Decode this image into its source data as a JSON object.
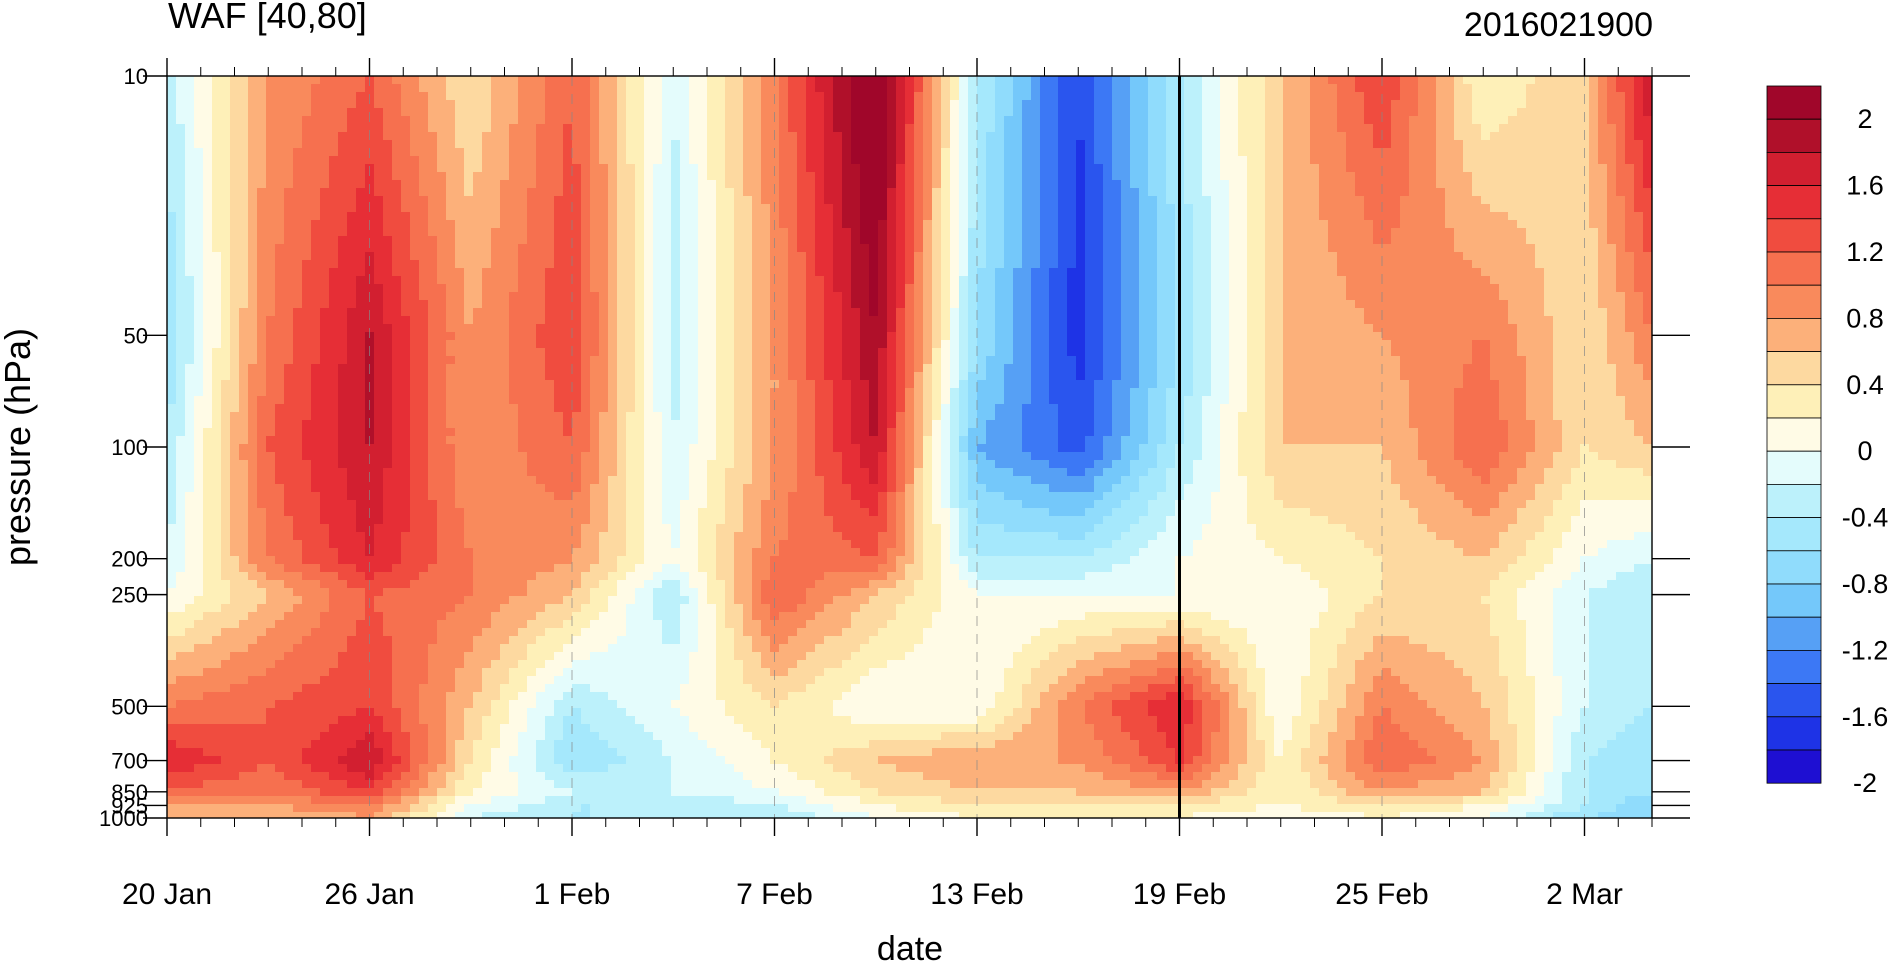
{
  "chart_data": {
    "type": "heatmap",
    "title": "WAF [40,80]",
    "subtitle": "2016021900",
    "xlabel": "date",
    "ylabel": "pressure (hPa)",
    "x_tick_labels": [
      "20 Jan",
      "26 Jan",
      "1 Feb",
      "7 Feb",
      "13 Feb",
      "19 Feb",
      "25 Feb",
      "2 Mar"
    ],
    "x_range": [
      "20 Jan",
      "4 Mar"
    ],
    "y_scale": "log",
    "y_reversed": true,
    "y_tick_labels": [
      "10",
      "50",
      "100",
      "200",
      "250",
      "500",
      "700",
      "850",
      "925",
      "1000"
    ],
    "y_values": [
      10,
      50,
      100,
      200,
      250,
      500,
      700,
      850,
      925,
      1000
    ],
    "ylim": [
      1000,
      10
    ],
    "vertical_marker_date": "19 Feb",
    "colorbar": {
      "labels": [
        "2",
        "1.6",
        "1.2",
        "0.8",
        "0.4",
        "0",
        "-0.4",
        "-0.8",
        "-1.2",
        "-1.6",
        "-2"
      ],
      "levels": [
        -2.2,
        -2.0,
        -1.8,
        -1.6,
        -1.4,
        -1.2,
        -1.0,
        -0.8,
        -0.6,
        -0.4,
        -0.2,
        0,
        0.2,
        0.4,
        0.6,
        0.8,
        1.0,
        1.2,
        1.4,
        1.6,
        1.8,
        2.0,
        2.2
      ],
      "colors": [
        "#1e0fd2",
        "#1e33e6",
        "#2a55ee",
        "#3c78f5",
        "#56a0f5",
        "#74c8fa",
        "#90dcfc",
        "#a5e8fc",
        "#bcf1fb",
        "#e4fcfc",
        "#fffbe6",
        "#fef0b8",
        "#fdd9a0",
        "#fcb07a",
        "#f98a5c",
        "#f6704f",
        "#f04c3f",
        "#e62e36",
        "#d21f30",
        "#b0102a",
        "#a0062a"
      ]
    },
    "grid": {
      "pressures": [
        10,
        50,
        100,
        200,
        250,
        500,
        700,
        850,
        925,
        1000
      ],
      "dates": [
        "20 Jan",
        "23 Jan",
        "26 Jan",
        "29 Jan",
        "1 Feb",
        "4 Feb",
        "7 Feb",
        "10 Feb",
        "13 Feb",
        "16 Feb",
        "19 Feb",
        "22 Feb",
        "25 Feb",
        "28 Feb",
        "2 Mar",
        "4 Mar"
      ],
      "values": [
        [
          -0.5,
          0.6,
          1.0,
          0.2,
          1.0,
          -0.4,
          0.8,
          2.2,
          -0.6,
          -1.8,
          -0.6,
          0.4,
          1.2,
          0.0,
          0.4,
          1.6
        ],
        [
          -0.8,
          0.8,
          1.6,
          0.6,
          1.2,
          -0.5,
          0.6,
          1.8,
          -0.8,
          -1.9,
          -0.8,
          0.4,
          0.6,
          0.8,
          0.2,
          0.8
        ],
        [
          -0.6,
          1.0,
          1.6,
          0.6,
          1.0,
          -0.4,
          0.6,
          1.6,
          -1.2,
          -1.7,
          -0.6,
          0.4,
          0.4,
          1.0,
          0.2,
          0.4
        ],
        [
          -0.4,
          0.8,
          1.4,
          0.8,
          0.6,
          -0.2,
          0.8,
          1.0,
          -0.6,
          -0.6,
          -0.2,
          0.0,
          0.2,
          0.4,
          -0.2,
          -0.4
        ],
        [
          -0.2,
          0.4,
          1.0,
          0.8,
          0.4,
          -0.6,
          1.0,
          0.4,
          -0.2,
          -0.2,
          -0.2,
          -0.2,
          0.2,
          0.2,
          -0.4,
          -0.6
        ],
        [
          0.8,
          1.0,
          1.2,
          0.4,
          -0.6,
          -0.2,
          0.2,
          -0.2,
          -0.2,
          0.8,
          1.4,
          -0.2,
          0.8,
          0.4,
          -0.4,
          -0.6
        ],
        [
          1.4,
          1.0,
          1.6,
          0.2,
          -0.8,
          -0.4,
          0.0,
          0.4,
          0.6,
          0.6,
          1.2,
          0.0,
          1.0,
          0.6,
          -0.6,
          -0.8
        ],
        [
          1.0,
          0.8,
          1.2,
          0.0,
          -0.4,
          -0.4,
          -0.2,
          0.2,
          0.4,
          0.4,
          0.6,
          0.0,
          0.6,
          0.4,
          -0.6,
          -0.8
        ],
        [
          0.6,
          0.6,
          0.8,
          -0.2,
          -0.6,
          -0.6,
          -0.4,
          0.0,
          0.2,
          0.2,
          0.2,
          0.0,
          0.2,
          0.0,
          -0.6,
          -1.0
        ],
        [
          0.4,
          0.4,
          0.6,
          -0.4,
          -0.6,
          -0.6,
          -0.6,
          -0.2,
          0.0,
          0.0,
          0.0,
          -0.2,
          0.0,
          -0.2,
          -0.8,
          -1.0
        ]
      ]
    }
  }
}
